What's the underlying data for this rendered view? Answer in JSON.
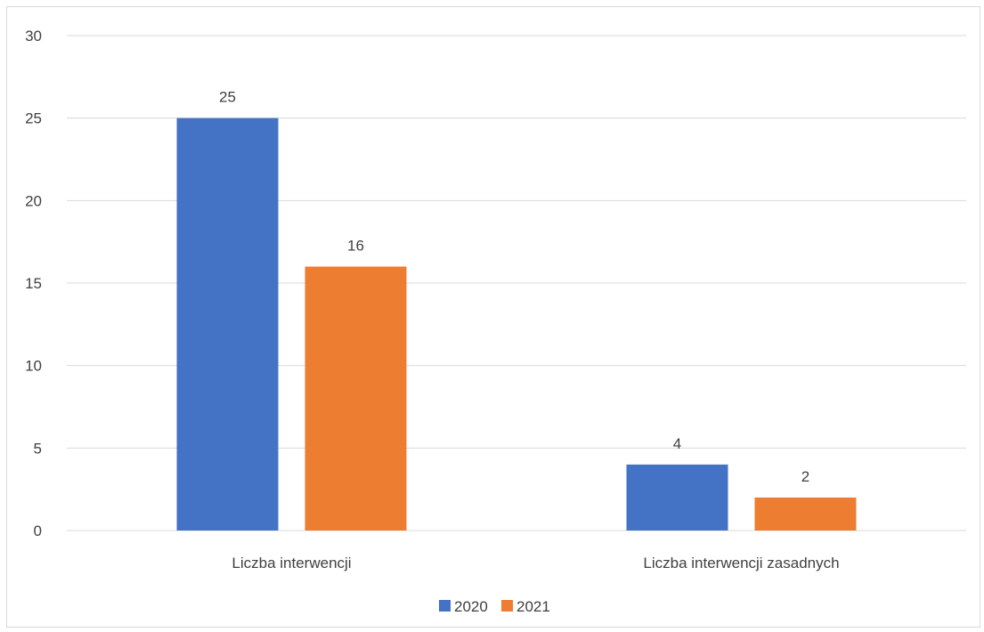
{
  "chart_data": {
    "type": "bar",
    "categories": [
      "Liczba interwencji",
      "Liczba interwencji zasadnych"
    ],
    "series": [
      {
        "name": "2020",
        "values": [
          25,
          4
        ],
        "color": "#4472c4"
      },
      {
        "name": "2021",
        "values": [
          16,
          2
        ],
        "color": "#ed7d31"
      }
    ],
    "yticks": [
      "0",
      "5",
      "10",
      "15",
      "20",
      "25",
      "30"
    ],
    "ylim": [
      0,
      30
    ],
    "grid": true,
    "legend_position": "bottom",
    "data_labels": true,
    "gridline_color": "#d9d9d9"
  }
}
